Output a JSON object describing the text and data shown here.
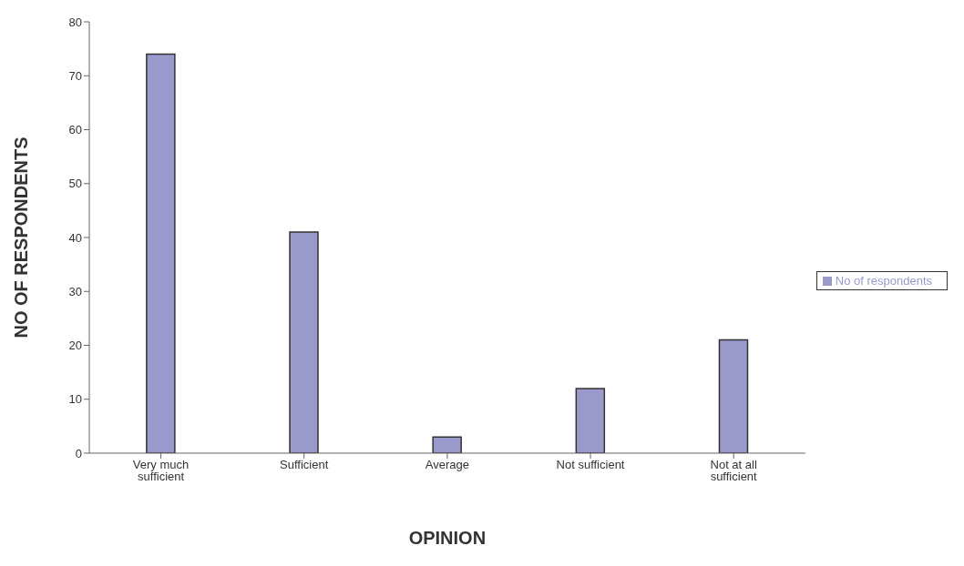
{
  "chart_data": {
    "type": "bar",
    "xlabel": "OPINION",
    "ylabel": "NO OF RESPONDENTS",
    "categories": [
      "Very much sufficient",
      "Sufficient",
      "Average",
      "Not sufficient",
      "Not at all sufficient"
    ],
    "series": [
      {
        "name": "No of respondents",
        "color": "#9999cc",
        "values": [
          74,
          41,
          3,
          12,
          21
        ]
      }
    ],
    "ylim": [
      0,
      80
    ],
    "yticks": [
      0,
      10,
      20,
      30,
      40,
      50,
      60,
      70,
      80
    ],
    "grid": false,
    "legend": "right"
  }
}
